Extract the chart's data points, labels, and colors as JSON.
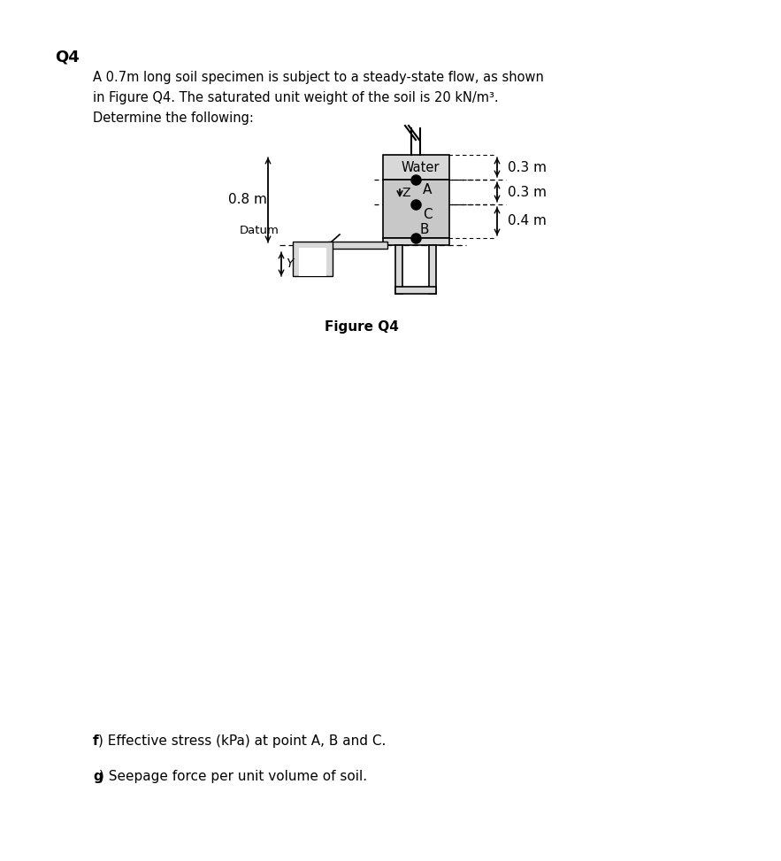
{
  "title": "Q4",
  "desc1": "A 0.7m long soil specimen is subject to a steady-state flow, as shown",
  "desc2": "in Figure Q4. The saturated unit weight of the soil is 20 kN/m³.",
  "desc3": "Determine the following:",
  "question_f": ") Effective stress (kPa) at point A, B and C.",
  "question_g": ") Seepage force per unit volume of soil.",
  "figure_label": "Figure Q4",
  "bg_color": "#ffffff",
  "soil_color": "#c8c8c8",
  "water_color": "#d4e8d4",
  "label_water": "Water",
  "label_A": "A",
  "label_B": "B",
  "label_C": "C",
  "label_Z": "Z",
  "label_datum": "Datum",
  "label_y": "Y",
  "dim_03_top": "0.3 m",
  "dim_03_mid": "0.3 m",
  "dim_04_bot": "0.4 m",
  "dim_08_left": "0.8 m"
}
